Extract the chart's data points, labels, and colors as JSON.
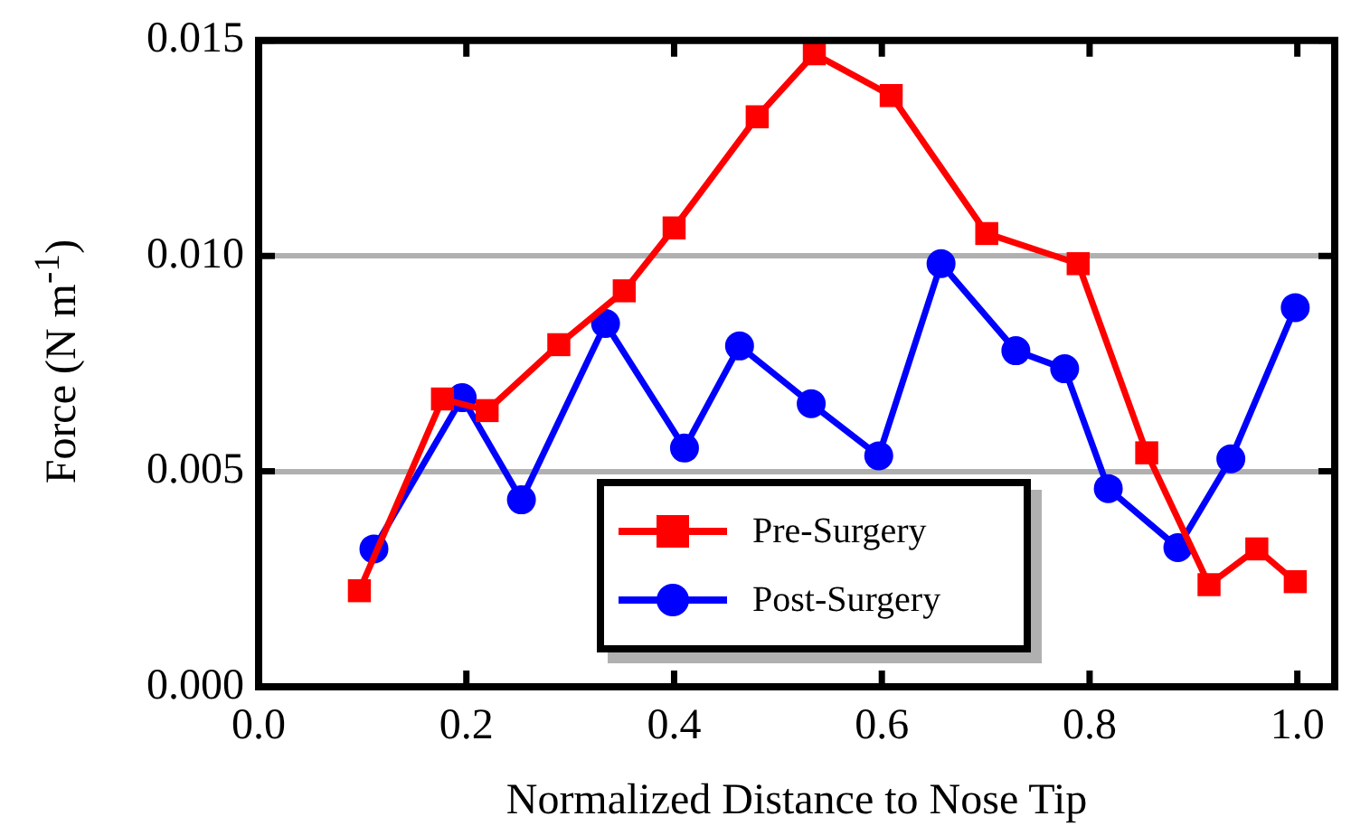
{
  "chart_data": {
    "type": "line",
    "xlabel": "Normalized Distance to Nose Tip",
    "ylabel": "Force (N m$^{-1}$)",
    "xlim": [
      0,
      1.036
    ],
    "xticks": [
      {
        "value": 0,
        "label": "0.0"
      },
      {
        "value": 0.2,
        "label": "0.2"
      },
      {
        "value": 0.4,
        "label": "0.4"
      },
      {
        "value": 0.6,
        "label": "0.6"
      },
      {
        "value": 0.8,
        "label": "0.8"
      },
      {
        "value": 1,
        "label": "1.0"
      }
    ],
    "ylim": [
      0,
      0.015
    ],
    "yticks": [
      {
        "value": 0,
        "label": "0.000"
      },
      {
        "value": 0.005,
        "label": "0.005"
      },
      {
        "value": 0.01,
        "label": "0.010"
      },
      {
        "value": 0.015,
        "label": "0.015"
      }
    ],
    "grid": "y",
    "legend": "bottom",
    "line_style": "solid",
    "series": [
      {
        "name": "Pre-Surgery",
        "color": "#ff0000",
        "marker": "square",
        "x": [
          0.097,
          0.177,
          0.22,
          0.289,
          0.352,
          0.4,
          0.48,
          0.535,
          0.609,
          0.701,
          0.789,
          0.855,
          0.915,
          0.961,
          0.998
        ],
        "values": [
          0.00223,
          0.00668,
          0.00641,
          0.00794,
          0.00919,
          0.01065,
          0.01323,
          0.01469,
          0.01372,
          0.01052,
          0.00982,
          0.00543,
          0.00237,
          0.0032,
          0.00244
        ]
      },
      {
        "name": "Post-Surgery",
        "color": "#0000ff",
        "marker": "circle",
        "x": [
          0.111,
          0.196,
          0.253,
          0.334,
          0.41,
          0.463,
          0.532,
          0.597,
          0.657,
          0.729,
          0.776,
          0.818,
          0.885,
          0.936,
          0.998
        ],
        "values": [
          0.0032,
          0.00671,
          0.00434,
          0.00843,
          0.00554,
          0.00791,
          0.00657,
          0.00536,
          0.00982,
          0.0078,
          0.00738,
          0.0046,
          0.00323,
          0.00529,
          0.0088
        ]
      }
    ]
  }
}
